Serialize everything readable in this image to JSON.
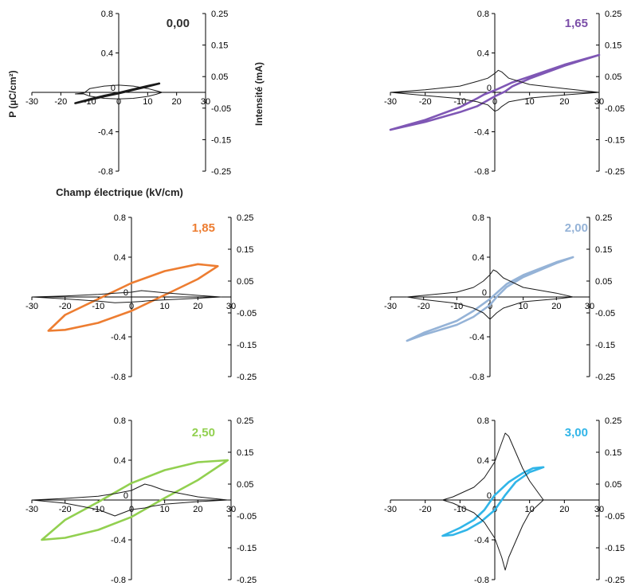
{
  "chart_data": [
    {
      "type": "line",
      "title": "0,00",
      "title_color": "#2f2f2f",
      "loop_color": "#1a1a1a",
      "xlabel": "Champ électrique (kV/cm)",
      "ylabel": "P (µC/cm²)",
      "y2label": "Intensité (mA)",
      "xlim": [
        -30,
        30
      ],
      "ylim": [
        -0.8,
        0.8
      ],
      "y2lim": [
        -0.25,
        0.25
      ],
      "x_ticks": [
        "-30",
        "-20",
        "-10",
        "0",
        "10",
        "20",
        "30"
      ],
      "y_ticks": [
        "0.8",
        "0.4",
        "0",
        "-0.4",
        "-0.8"
      ],
      "y2_ticks": [
        "0.25",
        "0.15",
        "0.05",
        "-0.05",
        "-0.15",
        "-0.25"
      ],
      "grid": false,
      "series": [
        {
          "axis": "y",
          "x": [
            -15,
            -10,
            -5,
            0,
            5,
            10,
            14,
            14,
            10,
            5,
            0,
            -5,
            -10,
            -15
          ],
          "y": [
            -0.11,
            -0.075,
            -0.04,
            -0.01,
            0.025,
            0.06,
            0.09,
            0.09,
            0.065,
            0.03,
            -0.005,
            -0.035,
            -0.07,
            -0.11
          ]
        },
        {
          "axis": "y2",
          "x": [
            -15,
            -12,
            -10,
            -5,
            0,
            5,
            10,
            13,
            15,
            13,
            10,
            5,
            0,
            -5,
            -10,
            -12,
            -15
          ],
          "y": [
            -0.005,
            -0.002,
            0.012,
            0.02,
            0.023,
            0.02,
            0.012,
            0.005,
            0.0,
            -0.006,
            -0.013,
            -0.019,
            -0.021,
            -0.019,
            -0.012,
            -0.005,
            -0.005
          ]
        }
      ]
    },
    {
      "type": "line",
      "title": "1,65",
      "title_color": "#7b4ea8",
      "loop_color": "#7f57b5",
      "xlim": [
        -30,
        30
      ],
      "ylim": [
        -0.8,
        0.8
      ],
      "y2lim": [
        -0.25,
        0.25
      ],
      "x_ticks": [
        "-30",
        "-20",
        "-10",
        "0",
        "10",
        "20",
        "30"
      ],
      "y_ticks": [
        "0.8",
        "0.4",
        "0",
        "-0.4",
        "-0.8"
      ],
      "y2_ticks": [
        "0.25",
        "0.15",
        "0.05",
        "-0.05",
        "-0.15",
        "-0.25"
      ],
      "grid": false,
      "series": [
        {
          "axis": "y",
          "x": [
            -30,
            -20,
            -10,
            -5,
            0,
            3,
            5,
            10,
            20,
            30,
            30,
            20,
            10,
            5,
            0,
            -3,
            -5,
            -10,
            -20,
            -30
          ],
          "y": [
            -0.38,
            -0.3,
            -0.2,
            -0.14,
            -0.04,
            0.01,
            0.06,
            0.14,
            0.27,
            0.38,
            0.38,
            0.28,
            0.16,
            0.1,
            0.02,
            -0.02,
            -0.06,
            -0.15,
            -0.28,
            -0.38
          ]
        },
        {
          "axis": "y2",
          "x": [
            -30,
            -20,
            -10,
            -5,
            -2,
            0,
            1,
            2,
            4,
            10,
            20,
            30,
            20,
            10,
            4,
            2,
            1,
            0,
            -2,
            -5,
            -10,
            -20,
            -30
          ],
          "y": [
            0.0,
            0.008,
            0.02,
            0.035,
            0.045,
            0.06,
            0.07,
            0.065,
            0.045,
            0.025,
            0.012,
            0.0,
            -0.008,
            -0.018,
            -0.03,
            -0.045,
            -0.055,
            -0.06,
            -0.04,
            -0.03,
            -0.02,
            -0.01,
            0.0
          ]
        }
      ]
    },
    {
      "type": "line",
      "title": "1,85",
      "title_color": "#ed7d31",
      "loop_color": "#ed7d31",
      "xlim": [
        -30,
        30
      ],
      "ylim": [
        -0.8,
        0.8
      ],
      "y2lim": [
        -0.25,
        0.25
      ],
      "x_ticks": [
        "-30",
        "-20",
        "-10",
        "0",
        "10",
        "20",
        "30"
      ],
      "y_ticks": [
        "0.8",
        "0.4",
        "0",
        "-0.4",
        "-0.8"
      ],
      "y2_ticks": [
        "0.25",
        "0.15",
        "0.05",
        "-0.05",
        "-0.15",
        "-0.25"
      ],
      "grid": false,
      "series": [
        {
          "axis": "y",
          "x": [
            -25,
            -20,
            -10,
            0,
            10,
            20,
            26,
            26,
            20,
            10,
            0,
            -10,
            -20,
            -25
          ],
          "y": [
            -0.34,
            -0.33,
            -0.26,
            -0.14,
            0.02,
            0.18,
            0.31,
            0.31,
            0.33,
            0.26,
            0.14,
            -0.02,
            -0.18,
            -0.34
          ]
        },
        {
          "axis": "y2",
          "x": [
            -30,
            -20,
            -10,
            -5,
            0,
            3,
            5,
            10,
            20,
            27,
            20,
            10,
            5,
            3,
            0,
            -5,
            -10,
            -20,
            -30
          ],
          "y": [
            0.0,
            0.003,
            0.008,
            0.012,
            0.015,
            0.02,
            0.018,
            0.013,
            0.005,
            0.0,
            -0.004,
            -0.009,
            -0.012,
            -0.014,
            -0.016,
            -0.018,
            -0.013,
            -0.006,
            0.0
          ]
        }
      ]
    },
    {
      "type": "line",
      "title": "2,00",
      "title_color": "#95b3d7",
      "loop_color": "#95b3d7",
      "xlim": [
        -30,
        30
      ],
      "ylim": [
        -0.8,
        0.8
      ],
      "y2lim": [
        -0.25,
        0.25
      ],
      "x_ticks": [
        "-30",
        "-20",
        "-10",
        "0",
        "10",
        "20",
        "30"
      ],
      "y_ticks": [
        "0.8",
        "0.4",
        "0",
        "-0.4",
        "-0.8"
      ],
      "y2_ticks": [
        "0.25",
        "0.15",
        "0.05",
        "-0.05",
        "-0.15",
        "-0.25"
      ],
      "grid": false,
      "series": [
        {
          "axis": "y",
          "x": [
            -25,
            -20,
            -10,
            -5,
            0,
            2,
            5,
            10,
            20,
            25,
            25,
            20,
            10,
            5,
            2,
            0,
            -5,
            -10,
            -20,
            -25
          ],
          "y": [
            -0.44,
            -0.38,
            -0.28,
            -0.2,
            -0.08,
            0.0,
            0.1,
            0.2,
            0.34,
            0.4,
            0.4,
            0.35,
            0.22,
            0.13,
            0.04,
            -0.02,
            -0.14,
            -0.24,
            -0.36,
            -0.44
          ]
        },
        {
          "axis": "y2",
          "x": [
            -25,
            -20,
            -10,
            -5,
            -2,
            0,
            1,
            2,
            4,
            10,
            20,
            25,
            20,
            10,
            4,
            2,
            1,
            0,
            -2,
            -5,
            -10,
            -20,
            -25
          ],
          "y": [
            0.0,
            0.005,
            0.015,
            0.03,
            0.05,
            0.07,
            0.085,
            0.08,
            0.06,
            0.03,
            0.012,
            0.0,
            -0.006,
            -0.015,
            -0.035,
            -0.05,
            -0.06,
            -0.07,
            -0.05,
            -0.035,
            -0.02,
            -0.008,
            0.0
          ]
        }
      ]
    },
    {
      "type": "line",
      "title": "2,50",
      "title_color": "#92d050",
      "loop_color": "#92d050",
      "xlim": [
        -30,
        30
      ],
      "ylim": [
        -0.8,
        0.8
      ],
      "y2lim": [
        -0.25,
        0.25
      ],
      "x_ticks": [
        "-30",
        "-20",
        "-10",
        "0",
        "10",
        "20",
        "30"
      ],
      "y_ticks": [
        "0.8",
        "0.4",
        "0",
        "-0.4",
        "-0.8"
      ],
      "y2_ticks": [
        "0.25",
        "0.15",
        "0.05",
        "-0.05",
        "-0.15",
        "-0.25"
      ],
      "grid": false,
      "series": [
        {
          "axis": "y",
          "x": [
            -27,
            -20,
            -10,
            0,
            10,
            20,
            29,
            29,
            20,
            10,
            0,
            -10,
            -20,
            -27
          ],
          "y": [
            -0.4,
            -0.38,
            -0.3,
            -0.17,
            0.02,
            0.2,
            0.4,
            0.4,
            0.38,
            0.3,
            0.17,
            -0.02,
            -0.2,
            -0.4
          ]
        },
        {
          "axis": "y2",
          "x": [
            -30,
            -20,
            -10,
            -5,
            0,
            4,
            6,
            10,
            20,
            29,
            20,
            10,
            6,
            4,
            0,
            -5,
            -10,
            -20,
            -30
          ],
          "y": [
            0.0,
            0.005,
            0.012,
            0.02,
            0.03,
            0.05,
            0.045,
            0.03,
            0.01,
            0.0,
            -0.005,
            -0.013,
            -0.02,
            -0.025,
            -0.03,
            -0.05,
            -0.03,
            -0.01,
            0.0
          ]
        }
      ]
    },
    {
      "type": "line",
      "title": "3,00",
      "title_color": "#31b5e8",
      "loop_color": "#31b5e8",
      "xlim": [
        -30,
        30
      ],
      "ylim": [
        -0.8,
        0.8
      ],
      "y2lim": [
        -0.25,
        0.25
      ],
      "x_ticks": [
        "-30",
        "-20",
        "-10",
        "0",
        "10",
        "20",
        "30"
      ],
      "y_ticks": [
        "0.8",
        "0.4",
        "0",
        "-0.4",
        "-0.8"
      ],
      "y2_ticks": [
        "0.25",
        "0.15",
        "0.05",
        "-0.05",
        "-0.15",
        "-0.25"
      ],
      "grid": false,
      "series": [
        {
          "axis": "y",
          "x": [
            -15,
            -12,
            -8,
            -4,
            0,
            3,
            6,
            10,
            14,
            14,
            11,
            8,
            4,
            0,
            -3,
            -6,
            -10,
            -15
          ],
          "y": [
            -0.36,
            -0.35,
            -0.3,
            -0.22,
            -0.1,
            0.05,
            0.18,
            0.28,
            0.33,
            0.33,
            0.32,
            0.27,
            0.18,
            0.05,
            -0.1,
            -0.2,
            -0.28,
            -0.36
          ]
        },
        {
          "axis": "y2",
          "x": [
            -15,
            -12,
            -10,
            -6,
            -3,
            0,
            2,
            3,
            4,
            6,
            8,
            10,
            12,
            14,
            12,
            10,
            8,
            6,
            4,
            3,
            2,
            0,
            -3,
            -6,
            -10,
            -12,
            -15
          ],
          "y": [
            0.0,
            0.01,
            0.02,
            0.04,
            0.07,
            0.12,
            0.18,
            0.21,
            0.2,
            0.15,
            0.1,
            0.06,
            0.03,
            0.0,
            -0.02,
            -0.04,
            -0.08,
            -0.13,
            -0.18,
            -0.22,
            -0.18,
            -0.12,
            -0.07,
            -0.04,
            -0.02,
            -0.01,
            0.0
          ]
        }
      ]
    }
  ]
}
